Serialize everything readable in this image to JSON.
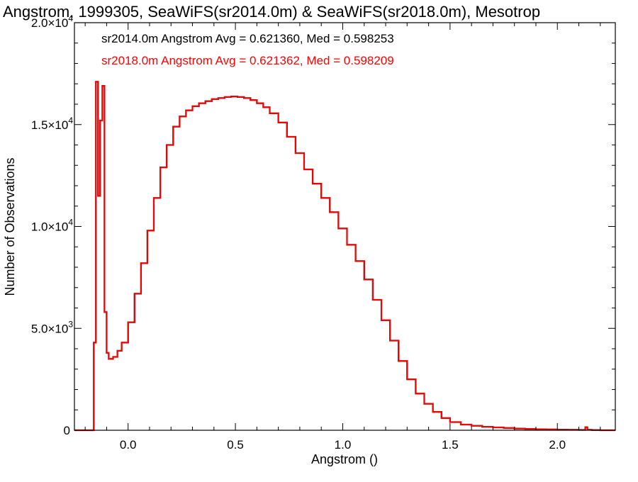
{
  "chart_data": {
    "type": "line",
    "style": "histogram-step",
    "title": "Angstrom, 1999305, SeaWiFS(sr2014.0m) & SeaWiFS(sr2018.0m), Mesotrop",
    "xlabel": "Angstrom ()",
    "ylabel": "Number of Observations",
    "xlim": [
      -0.25,
      2.27
    ],
    "ylim": [
      0,
      20000
    ],
    "grid": false,
    "x_ticks": [
      {
        "value": 0.0,
        "label": "0.0"
      },
      {
        "value": 0.5,
        "label": "0.5"
      },
      {
        "value": 1.0,
        "label": "1.0"
      },
      {
        "value": 1.5,
        "label": "1.5"
      },
      {
        "value": 2.0,
        "label": "2.0"
      }
    ],
    "y_ticks": [
      {
        "value": 0,
        "label": "0",
        "exp": ""
      },
      {
        "value": 5000,
        "label": "5.0×10",
        "exp": "3"
      },
      {
        "value": 10000,
        "label": "1.0×10",
        "exp": "4"
      },
      {
        "value": 15000,
        "label": "1.5×10",
        "exp": "4"
      },
      {
        "value": 20000,
        "label": "2.0×10",
        "exp": "4"
      }
    ],
    "annotations": [
      {
        "text": "sr2014.0m Angstrom Avg = 0.621360, Med = 0.598253",
        "color": "#000000"
      },
      {
        "text": "sr2018.0m Angstrom Avg = 0.621362, Med = 0.598209",
        "color": "#ff0000"
      }
    ],
    "series": [
      {
        "color": "#000000",
        "x": [
          -0.25,
          -0.2,
          -0.16,
          -0.15,
          -0.14,
          -0.13,
          -0.12,
          -0.11,
          -0.1,
          -0.09,
          -0.07,
          -0.05,
          -0.03,
          0.0,
          0.03,
          0.06,
          0.09,
          0.12,
          0.15,
          0.18,
          0.21,
          0.24,
          0.27,
          0.3,
          0.33,
          0.36,
          0.39,
          0.42,
          0.45,
          0.48,
          0.51,
          0.54,
          0.57,
          0.6,
          0.63,
          0.66,
          0.7,
          0.74,
          0.78,
          0.82,
          0.86,
          0.9,
          0.94,
          0.98,
          1.02,
          1.06,
          1.1,
          1.14,
          1.18,
          1.22,
          1.26,
          1.3,
          1.34,
          1.38,
          1.42,
          1.46,
          1.5,
          1.55,
          1.6,
          1.65,
          1.7,
          1.75,
          1.8,
          1.85,
          1.9,
          1.95,
          2.0,
          2.05,
          2.1,
          2.13,
          2.14,
          2.16,
          2.2,
          2.27
        ],
        "values": [
          0,
          0,
          4300,
          17100,
          11500,
          15200,
          16900,
          5800,
          3800,
          3500,
          3600,
          3900,
          4300,
          5300,
          6700,
          8200,
          9800,
          11400,
          12900,
          14000,
          14900,
          15400,
          15700,
          15900,
          16050,
          16150,
          16250,
          16300,
          16350,
          16380,
          16350,
          16300,
          16200,
          16050,
          15850,
          15550,
          15100,
          14400,
          13600,
          12800,
          12100,
          11400,
          10700,
          9900,
          9100,
          8300,
          7400,
          6400,
          5400,
          4400,
          3400,
          2500,
          1800,
          1300,
          900,
          600,
          400,
          280,
          220,
          170,
          140,
          110,
          85,
          65,
          50,
          40,
          30,
          25,
          18,
          150,
          20,
          10,
          0,
          0
        ]
      },
      {
        "color": "#ff0000",
        "x": [
          -0.25,
          -0.2,
          -0.16,
          -0.15,
          -0.14,
          -0.13,
          -0.12,
          -0.11,
          -0.1,
          -0.09,
          -0.07,
          -0.05,
          -0.03,
          0.0,
          0.03,
          0.06,
          0.09,
          0.12,
          0.15,
          0.18,
          0.21,
          0.24,
          0.27,
          0.3,
          0.33,
          0.36,
          0.39,
          0.42,
          0.45,
          0.48,
          0.51,
          0.54,
          0.57,
          0.6,
          0.63,
          0.66,
          0.7,
          0.74,
          0.78,
          0.82,
          0.86,
          0.9,
          0.94,
          0.98,
          1.02,
          1.06,
          1.1,
          1.14,
          1.18,
          1.22,
          1.26,
          1.3,
          1.34,
          1.38,
          1.42,
          1.46,
          1.5,
          1.55,
          1.6,
          1.65,
          1.7,
          1.75,
          1.8,
          1.85,
          1.9,
          1.95,
          2.0,
          2.05,
          2.1,
          2.13,
          2.14,
          2.16,
          2.2,
          2.27
        ],
        "values": [
          0,
          0,
          4300,
          17100,
          11500,
          15200,
          16900,
          5800,
          3800,
          3500,
          3600,
          3900,
          4300,
          5300,
          6700,
          8200,
          9800,
          11400,
          12900,
          14000,
          14900,
          15400,
          15700,
          15900,
          16050,
          16150,
          16250,
          16300,
          16350,
          16380,
          16350,
          16300,
          16200,
          16050,
          15850,
          15550,
          15100,
          14400,
          13600,
          12800,
          12100,
          11400,
          10700,
          9900,
          9100,
          8300,
          7400,
          6400,
          5400,
          4400,
          3400,
          2500,
          1800,
          1300,
          900,
          600,
          400,
          280,
          220,
          170,
          140,
          110,
          85,
          65,
          50,
          40,
          30,
          25,
          18,
          150,
          20,
          10,
          0,
          0
        ]
      }
    ]
  }
}
